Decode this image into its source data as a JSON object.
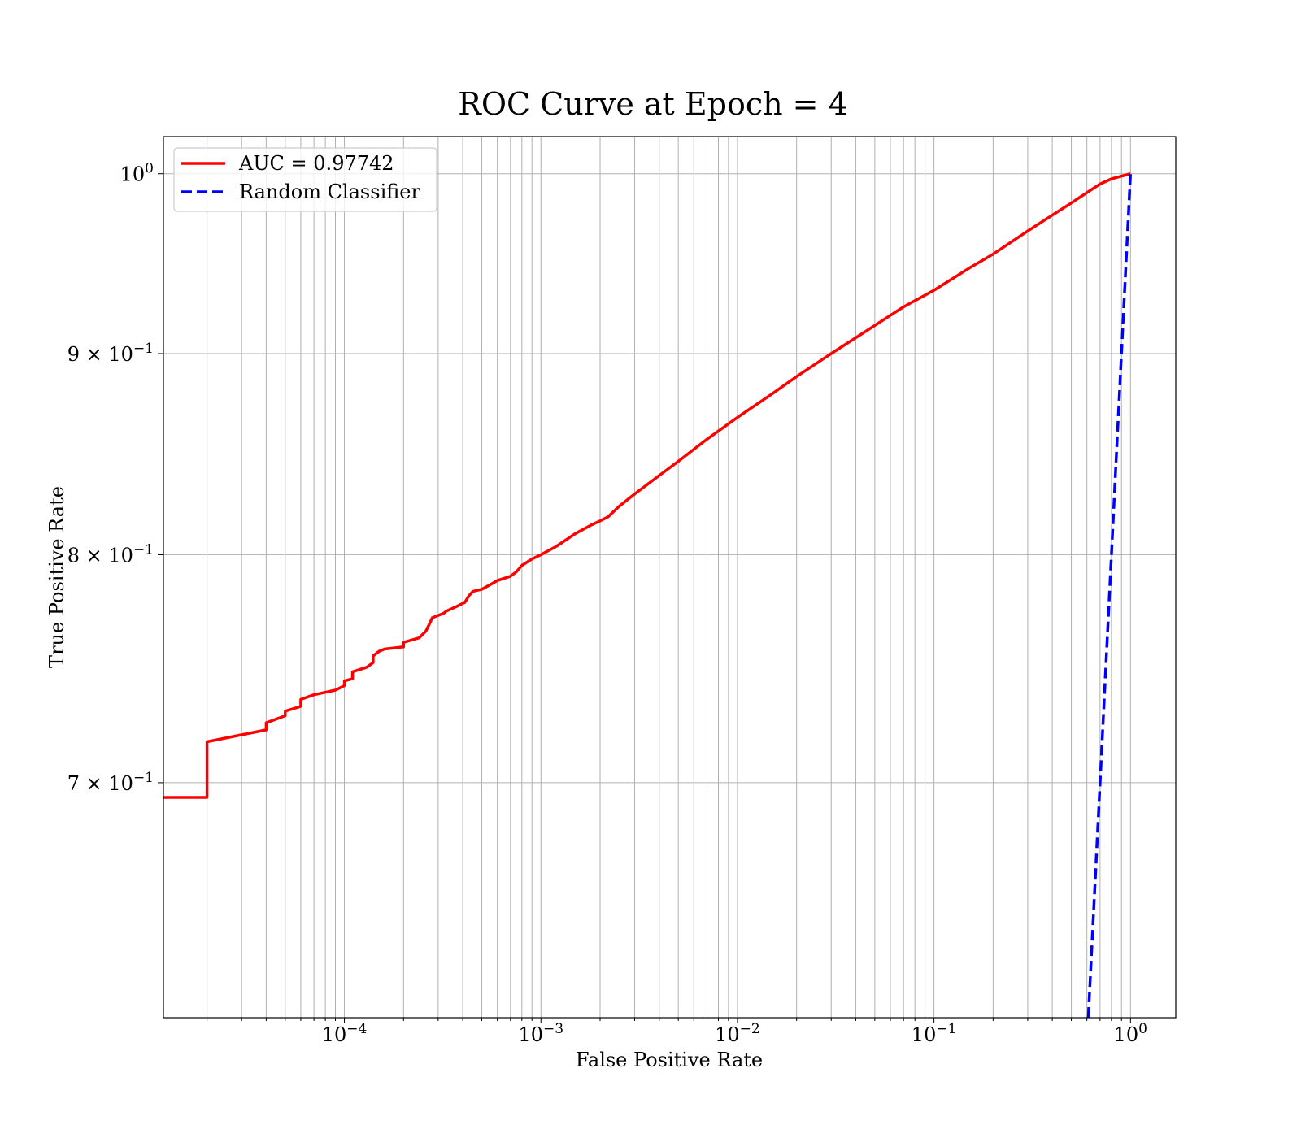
{
  "chart_data": {
    "type": "line",
    "title": "ROC Curve at Epoch = 4",
    "xlabel": "False Positive Rate",
    "ylabel": "True Positive Rate",
    "xscale": "log",
    "yscale": "log",
    "xlim": [
      1.2e-05,
      1.7
    ],
    "ylim": [
      0.61,
      1.022
    ],
    "grid": "major and minor, both axes",
    "legend_placement": "upper-left",
    "x_tick_labels": [
      {
        "value": 0.0001,
        "base": "10",
        "exp": "−4"
      },
      {
        "value": 0.001,
        "base": "10",
        "exp": "−3"
      },
      {
        "value": 0.01,
        "base": "10",
        "exp": "−2"
      },
      {
        "value": 0.1,
        "base": "10",
        "exp": "−1"
      },
      {
        "value": 1,
        "base": "10",
        "exp": "0"
      }
    ],
    "y_tick_labels": [
      {
        "value": 1.0,
        "mant": "",
        "base": "10",
        "exp": "0"
      },
      {
        "value": 0.9,
        "mant": "9 × ",
        "base": "10",
        "exp": "−1"
      },
      {
        "value": 0.8,
        "mant": "8 × ",
        "base": "10",
        "exp": "−1"
      },
      {
        "value": 0.7,
        "mant": "7 × ",
        "base": "10",
        "exp": "−1"
      }
    ],
    "series": [
      {
        "name": "AUC = 0.97742",
        "color": "#ff0000",
        "style": "solid",
        "x": [
          1.2e-05,
          2e-05,
          2e-05,
          4e-05,
          4e-05,
          5e-05,
          5e-05,
          6e-05,
          6e-05,
          7e-05,
          9e-05,
          0.0001,
          0.0001,
          0.00011,
          0.00011,
          0.00013,
          0.00014,
          0.00014,
          0.00015,
          0.00016,
          0.0002,
          0.0002,
          0.00024,
          0.00026,
          0.00027,
          0.00028,
          0.00032,
          0.00033,
          0.00037,
          0.00041,
          0.00043,
          0.00045,
          0.0005,
          0.00055,
          0.0006,
          0.0007,
          0.00075,
          0.0008,
          0.0009,
          0.001,
          0.0012,
          0.0015,
          0.0018,
          0.002,
          0.0022,
          0.0025,
          0.003,
          0.004,
          0.005,
          0.007,
          0.01,
          0.015,
          0.02,
          0.03,
          0.05,
          0.07,
          0.1,
          0.15,
          0.2,
          0.3,
          0.4,
          0.5,
          0.6,
          0.7,
          0.8,
          1.0
        ],
        "y": [
          0.694,
          0.694,
          0.717,
          0.722,
          0.725,
          0.728,
          0.73,
          0.732,
          0.735,
          0.737,
          0.739,
          0.741,
          0.743,
          0.744,
          0.747,
          0.749,
          0.751,
          0.754,
          0.756,
          0.757,
          0.758,
          0.76,
          0.762,
          0.765,
          0.768,
          0.771,
          0.773,
          0.774,
          0.776,
          0.778,
          0.781,
          0.783,
          0.784,
          0.786,
          0.788,
          0.79,
          0.792,
          0.795,
          0.798,
          0.8,
          0.804,
          0.81,
          0.814,
          0.816,
          0.818,
          0.823,
          0.829,
          0.838,
          0.845,
          0.856,
          0.867,
          0.879,
          0.888,
          0.9,
          0.915,
          0.925,
          0.934,
          0.946,
          0.954,
          0.967,
          0.976,
          0.983,
          0.989,
          0.994,
          0.997,
          1.0
        ]
      },
      {
        "name": "Random Classifier",
        "color": "#0000ff",
        "style": "dashed",
        "x": [
          0.61,
          0.65,
          0.7,
          0.75,
          0.8,
          0.85,
          0.9,
          0.95,
          1.0
        ],
        "y": [
          0.61,
          0.65,
          0.7,
          0.75,
          0.8,
          0.85,
          0.9,
          0.95,
          1.0
        ]
      }
    ]
  }
}
